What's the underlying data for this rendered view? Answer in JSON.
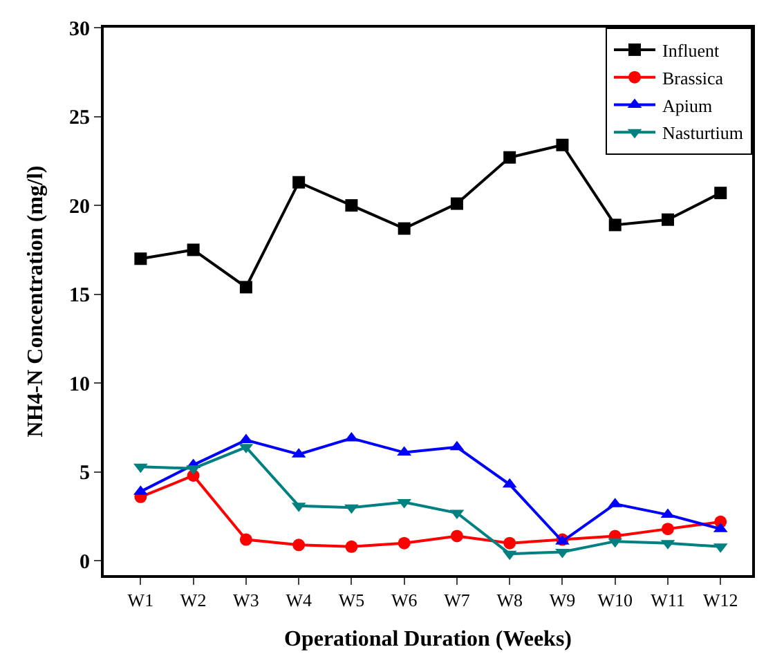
{
  "chart_data": {
    "type": "line",
    "xlabel": "Operational Duration (Weeks)",
    "ylabel": "NH4-N Concentration (mg/l)",
    "categories": [
      "W1",
      "W2",
      "W3",
      "W4",
      "W5",
      "W6",
      "W7",
      "W8",
      "W9",
      "W10",
      "W11",
      "W12"
    ],
    "series": [
      {
        "name": "Influent",
        "color": "#000000",
        "marker": "square",
        "values": [
          17.0,
          17.5,
          15.4,
          21.3,
          20.0,
          18.7,
          20.1,
          22.7,
          23.4,
          18.9,
          19.2,
          20.7
        ]
      },
      {
        "name": "Brassica",
        "color": "#ff0000",
        "marker": "circle",
        "values": [
          3.6,
          4.8,
          1.2,
          0.9,
          0.8,
          1.0,
          1.4,
          1.0,
          1.2,
          1.4,
          1.8,
          2.2
        ]
      },
      {
        "name": "Apium",
        "color": "#0000ff",
        "marker": "triangle",
        "values": [
          3.9,
          5.4,
          6.8,
          6.0,
          6.9,
          6.1,
          6.4,
          4.3,
          1.1,
          3.2,
          2.6,
          1.8
        ]
      },
      {
        "name": "Nasturtium",
        "color": "#008080",
        "marker": "triangle-down",
        "values": [
          5.3,
          5.2,
          6.4,
          3.1,
          3.0,
          3.3,
          2.7,
          0.4,
          0.5,
          1.1,
          1.0,
          0.8
        ]
      }
    ],
    "ylim": [
      -0.8,
      30
    ],
    "yticks": [
      0,
      5,
      10,
      15,
      20,
      25,
      30
    ],
    "legend": "top right",
    "line_style": "solid"
  }
}
